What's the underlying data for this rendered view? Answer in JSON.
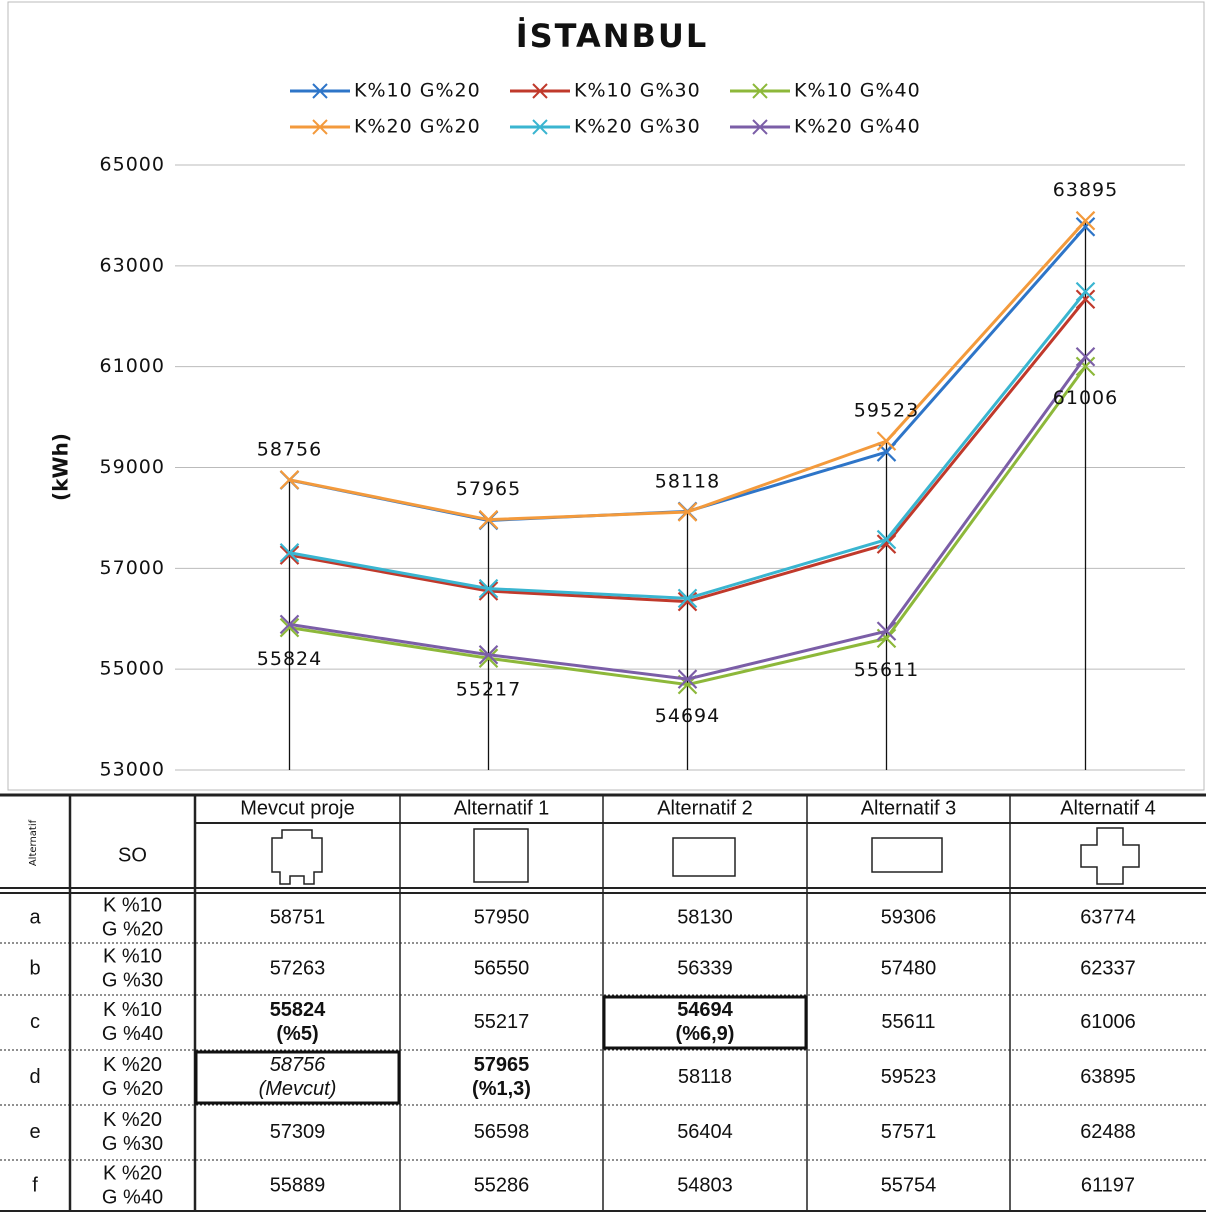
{
  "chart_data": {
    "type": "line",
    "title": "İSTANBUL",
    "y_label": "(kWh)",
    "categories": [
      null,
      null,
      null,
      null,
      null
    ],
    "ylim": [
      53000,
      65000
    ],
    "yticks": [
      53000,
      55000,
      57000,
      59000,
      61000,
      63000,
      65000
    ],
    "grid": true,
    "legend": "top",
    "series": [
      {
        "name": "K%10 G%20",
        "color": "#2e75c8",
        "values": [
          58751,
          57950,
          58130,
          59306,
          63774
        ]
      },
      {
        "name": "K%10 G%30",
        "color": "#c0392b",
        "values": [
          57263,
          56550,
          56339,
          57480,
          62337
        ]
      },
      {
        "name": "K%10 G%40",
        "color": "#8db83a",
        "values": [
          55824,
          55217,
          54694,
          55611,
          61006
        ],
        "data_labels": "below"
      },
      {
        "name": "K%20 G%20",
        "color": "#f39a3c",
        "values": [
          58756,
          57965,
          58118,
          59523,
          63895
        ],
        "data_labels": "above"
      },
      {
        "name": "K%20 G%30",
        "color": "#3ab5d0",
        "values": [
          57309,
          56598,
          56404,
          57571,
          62488
        ]
      },
      {
        "name": "K%20 G%40",
        "color": "#7b5ea7",
        "values": [
          55889,
          55286,
          54803,
          55754,
          61197
        ]
      }
    ]
  },
  "table": {
    "header": [
      "Alternatif",
      "SO",
      "Mevcut proje",
      "Alternatif 1",
      "Alternatif 2",
      "Alternatif 3",
      "Alternatif 4"
    ],
    "rows": [
      {
        "id": "a",
        "so": [
          "K %10",
          "G %20"
        ],
        "cells": [
          [
            "58751"
          ],
          [
            "57950"
          ],
          [
            "58130"
          ],
          [
            "59306"
          ],
          [
            "63774"
          ]
        ]
      },
      {
        "id": "b",
        "so": [
          "K %10",
          "G %30"
        ],
        "cells": [
          [
            "57263"
          ],
          [
            "56550"
          ],
          [
            "56339"
          ],
          [
            "57480"
          ],
          [
            "62337"
          ]
        ]
      },
      {
        "id": "c",
        "so": [
          "K %10",
          "G %40"
        ],
        "cells": [
          [
            "55824",
            "(%5)"
          ],
          [
            "55217"
          ],
          [
            "54694",
            "(%6,9)"
          ],
          [
            "55611"
          ],
          [
            "61006"
          ]
        ]
      },
      {
        "id": "d",
        "so": [
          "K %20",
          "G %20"
        ],
        "cells": [
          [
            "58756",
            "(Mevcut)"
          ],
          [
            "57965",
            "(%1,3)"
          ],
          [
            "58118"
          ],
          [
            "59523"
          ],
          [
            "63895"
          ]
        ]
      },
      {
        "id": "e",
        "so": [
          "K %20",
          "G %30"
        ],
        "cells": [
          [
            "57309"
          ],
          [
            "56598"
          ],
          [
            "56404"
          ],
          [
            "57571"
          ],
          [
            "62488"
          ]
        ]
      },
      {
        "id": "f",
        "so": [
          "K %20",
          "G %40"
        ],
        "cells": [
          [
            "55889"
          ],
          [
            "55286"
          ],
          [
            "54803"
          ],
          [
            "55754"
          ],
          [
            "61197"
          ]
        ]
      }
    ],
    "bold": [
      [
        2,
        0
      ],
      [
        2,
        2
      ],
      [
        3,
        1
      ]
    ],
    "italic": [
      [
        3,
        0
      ]
    ],
    "boxed": [
      [
        2,
        2
      ],
      [
        3,
        0
      ]
    ]
  }
}
